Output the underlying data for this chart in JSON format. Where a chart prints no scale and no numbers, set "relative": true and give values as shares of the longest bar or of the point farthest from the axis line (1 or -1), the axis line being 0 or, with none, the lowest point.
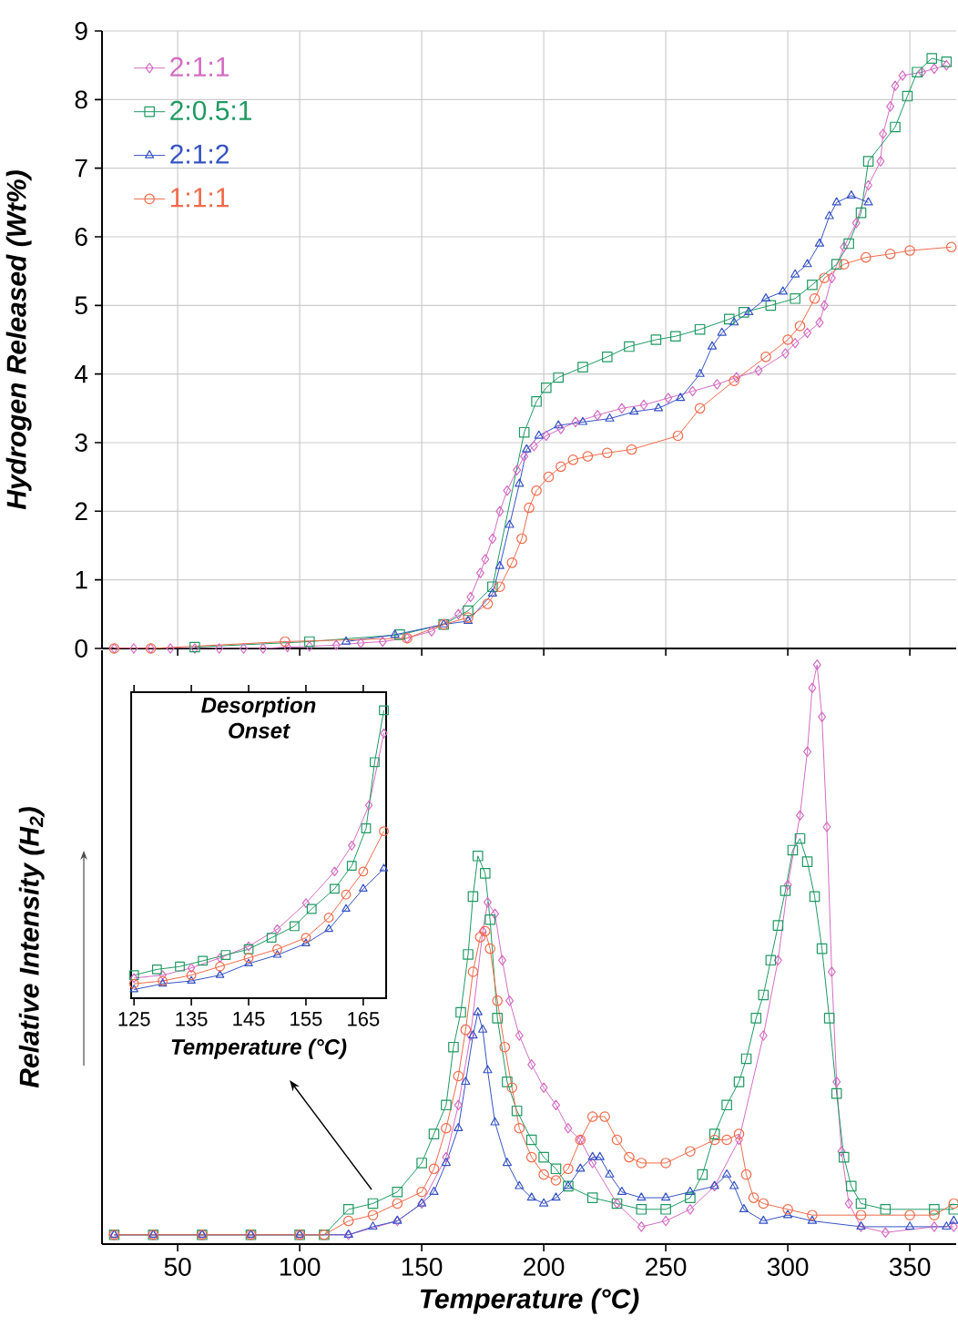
{
  "chart_data": [
    {
      "type": "line",
      "ylabel": "Hydrogen Released (Wt%)",
      "xlim": [
        19,
        369
      ],
      "ylim": [
        0,
        9
      ],
      "xticks": [
        50,
        100,
        150,
        200,
        250,
        300,
        350
      ],
      "yticks": [
        0,
        1,
        2,
        3,
        4,
        5,
        6,
        7,
        8,
        9
      ],
      "tick_labels": "y",
      "grid": true,
      "legend": "top left",
      "series": [
        {
          "name": "2:1:1",
          "color": "#d46cc4",
          "marker": "diamond",
          "x": [
            24,
            32,
            39,
            47,
            57,
            67,
            77,
            85,
            95,
            104,
            115,
            125,
            134,
            144,
            154,
            165,
            170,
            174,
            176,
            179,
            182,
            185,
            189,
            192,
            196,
            201,
            207,
            213,
            222,
            232,
            241,
            251,
            261,
            271,
            279,
            288,
            299,
            303,
            308,
            313,
            315,
            318,
            323,
            328,
            333,
            338,
            339,
            342,
            344,
            347,
            355,
            360,
            365
          ],
          "values": [
            0,
            0,
            0,
            0,
            0,
            0,
            0,
            0,
            0.02,
            0.03,
            0.05,
            0.08,
            0.1,
            0.15,
            0.25,
            0.5,
            0.75,
            1.1,
            1.3,
            1.6,
            2.0,
            2.3,
            2.6,
            2.8,
            2.95,
            3.1,
            3.2,
            3.3,
            3.4,
            3.5,
            3.55,
            3.65,
            3.75,
            3.85,
            3.95,
            4.05,
            4.3,
            4.45,
            4.6,
            4.75,
            5.0,
            5.4,
            5.85,
            6.2,
            6.75,
            7.1,
            7.5,
            7.9,
            8.2,
            8.35,
            8.4,
            8.45,
            8.5
          ]
        },
        {
          "name": "2:0.5:1",
          "color": "#1f9a62",
          "marker": "square",
          "x": [
            57,
            104,
            141,
            159,
            169,
            179,
            192,
            197,
            201,
            206,
            216,
            226,
            235,
            246,
            254,
            264,
            276,
            282,
            293,
            303,
            310,
            320,
            325,
            330,
            333,
            344,
            349,
            353,
            359,
            365
          ],
          "values": [
            0.02,
            0.1,
            0.2,
            0.35,
            0.55,
            0.9,
            3.15,
            3.6,
            3.8,
            3.95,
            4.1,
            4.25,
            4.4,
            4.5,
            4.55,
            4.65,
            4.8,
            4.9,
            5.0,
            5.1,
            5.3,
            5.6,
            5.9,
            6.35,
            7.1,
            7.6,
            8.05,
            8.4,
            8.6,
            8.55
          ]
        },
        {
          "name": "2:1:2",
          "color": "#3552c4",
          "marker": "triangle",
          "x": [
            119,
            139,
            159,
            169,
            179,
            182,
            186,
            190,
            193,
            198,
            206,
            216,
            227,
            237,
            247,
            256,
            264,
            269,
            273,
            278,
            284,
            291,
            298,
            303,
            308,
            313,
            317,
            320,
            326,
            333
          ],
          "values": [
            0.1,
            0.2,
            0.35,
            0.4,
            0.8,
            1.2,
            1.8,
            2.4,
            2.9,
            3.1,
            3.25,
            3.3,
            3.35,
            3.45,
            3.5,
            3.65,
            4.0,
            4.4,
            4.6,
            4.75,
            4.9,
            5.1,
            5.2,
            5.45,
            5.6,
            5.9,
            6.3,
            6.5,
            6.6,
            6.5
          ]
        },
        {
          "name": "1:1:1",
          "color": "#f06a4a",
          "marker": "circle",
          "x": [
            24,
            39,
            94,
            144,
            159,
            169,
            177,
            182,
            187,
            191,
            194,
            197,
            202,
            207,
            212,
            218,
            226,
            236,
            255,
            264,
            278,
            291,
            300,
            305,
            311,
            315,
            323,
            332,
            342,
            350,
            367
          ],
          "values": [
            0,
            0,
            0.1,
            0.15,
            0.35,
            0.45,
            0.65,
            0.9,
            1.25,
            1.6,
            2.05,
            2.3,
            2.5,
            2.65,
            2.75,
            2.8,
            2.85,
            2.9,
            3.1,
            3.5,
            3.9,
            4.25,
            4.5,
            4.7,
            5.1,
            5.4,
            5.6,
            5.7,
            5.75,
            5.8,
            5.85
          ]
        }
      ]
    },
    {
      "type": "line",
      "relative": true,
      "xlabel": "Temperature (°C)",
      "ylabel": "Relative Intensity (H$_{2}$)",
      "xlim": [
        19,
        369
      ],
      "xticks": [
        50,
        100,
        150,
        200,
        250,
        300,
        350
      ],
      "tick_labels": "x",
      "series": [
        {
          "color": "#d46cc4",
          "marker": "diamond",
          "x": [
            24,
            40,
            60,
            80,
            100,
            120,
            140,
            150,
            160,
            165,
            170,
            175,
            177,
            180,
            183,
            186,
            190,
            195,
            200,
            205,
            210,
            215,
            220,
            230,
            240,
            250,
            260,
            270,
            280,
            290,
            296,
            300,
            305,
            308,
            310,
            312,
            314,
            316,
            318,
            320,
            322,
            325,
            330,
            340,
            360,
            368
          ],
          "values": [
            0.016,
            0.016,
            0.016,
            0.016,
            0.016,
            0.016,
            0.04,
            0.07,
            0.15,
            0.24,
            0.36,
            0.54,
            0.59,
            0.57,
            0.49,
            0.42,
            0.36,
            0.31,
            0.27,
            0.24,
            0.2,
            0.18,
            0.14,
            0.07,
            0.03,
            0.04,
            0.06,
            0.1,
            0.18,
            0.36,
            0.49,
            0.62,
            0.74,
            0.85,
            0.96,
            1.0,
            0.91,
            0.72,
            0.47,
            0.28,
            0.16,
            0.07,
            0.03,
            0.02,
            0.03,
            0.03
          ]
        },
        {
          "color": "#1f9a62",
          "marker": "square",
          "x": [
            24,
            40,
            60,
            80,
            100,
            110,
            120,
            130,
            140,
            150,
            155,
            160,
            163,
            166,
            169,
            171,
            173,
            176,
            178,
            181,
            185,
            189,
            195,
            200,
            205,
            210,
            220,
            230,
            240,
            250,
            260,
            265,
            270,
            275,
            280,
            283,
            287,
            290,
            293,
            296,
            299,
            302,
            305,
            308,
            311,
            314,
            317,
            320,
            323,
            326,
            330,
            340,
            360,
            368
          ],
          "values": [
            0.016,
            0.016,
            0.016,
            0.016,
            0.016,
            0.016,
            0.06,
            0.07,
            0.09,
            0.14,
            0.19,
            0.24,
            0.34,
            0.4,
            0.5,
            0.6,
            0.67,
            0.64,
            0.56,
            0.39,
            0.28,
            0.23,
            0.18,
            0.15,
            0.13,
            0.1,
            0.08,
            0.07,
            0.06,
            0.06,
            0.08,
            0.12,
            0.19,
            0.24,
            0.28,
            0.32,
            0.39,
            0.43,
            0.49,
            0.55,
            0.61,
            0.68,
            0.7,
            0.66,
            0.6,
            0.51,
            0.39,
            0.26,
            0.15,
            0.1,
            0.07,
            0.06,
            0.06,
            0.06
          ]
        },
        {
          "color": "#3552c4",
          "marker": "triangle",
          "x": [
            24,
            40,
            60,
            80,
            100,
            120,
            130,
            140,
            150,
            155,
            160,
            165,
            168,
            171,
            173,
            175,
            177,
            180,
            185,
            190,
            195,
            200,
            205,
            210,
            215,
            220,
            223,
            227,
            232,
            240,
            250,
            260,
            270,
            275,
            278,
            282,
            290,
            300,
            310,
            330,
            350,
            365,
            368
          ],
          "values": [
            0.016,
            0.016,
            0.016,
            0.016,
            0.016,
            0.016,
            0.03,
            0.04,
            0.07,
            0.09,
            0.14,
            0.2,
            0.28,
            0.36,
            0.4,
            0.37,
            0.3,
            0.21,
            0.14,
            0.1,
            0.08,
            0.07,
            0.08,
            0.1,
            0.13,
            0.15,
            0.15,
            0.12,
            0.09,
            0.08,
            0.08,
            0.09,
            0.1,
            0.12,
            0.1,
            0.06,
            0.04,
            0.05,
            0.04,
            0.03,
            0.03,
            0.03,
            0.04
          ]
        },
        {
          "color": "#f06a4a",
          "marker": "circle",
          "x": [
            24,
            40,
            60,
            80,
            100,
            110,
            120,
            130,
            140,
            150,
            155,
            160,
            165,
            168,
            171,
            174,
            176,
            178,
            181,
            184,
            187,
            190,
            195,
            200,
            205,
            210,
            215,
            220,
            225,
            230,
            235,
            240,
            250,
            260,
            270,
            275,
            280,
            283,
            286,
            290,
            300,
            310,
            330,
            350,
            360,
            368
          ],
          "values": [
            0.016,
            0.016,
            0.016,
            0.016,
            0.016,
            0.016,
            0.04,
            0.05,
            0.07,
            0.09,
            0.13,
            0.2,
            0.29,
            0.37,
            0.47,
            0.53,
            0.54,
            0.51,
            0.42,
            0.34,
            0.27,
            0.2,
            0.15,
            0.12,
            0.11,
            0.13,
            0.18,
            0.22,
            0.22,
            0.18,
            0.15,
            0.14,
            0.14,
            0.16,
            0.18,
            0.18,
            0.19,
            0.12,
            0.08,
            0.07,
            0.06,
            0.05,
            0.05,
            0.05,
            0.05,
            0.07
          ]
        }
      ]
    },
    {
      "type": "line",
      "relative": true,
      "title": "Desorption Onset",
      "xlabel": "Temperature (°C)",
      "xlim": [
        124.5,
        169
      ],
      "xticks": [
        125,
        135,
        145,
        155,
        165
      ],
      "tick_labels": "x",
      "series": [
        {
          "color": "#d46cc4",
          "marker": "diamond",
          "x": [
            125,
            130,
            135,
            140,
            145,
            150,
            155,
            160,
            163,
            166,
            168.6
          ],
          "values": [
            0.07,
            0.08,
            0.105,
            0.14,
            0.18,
            0.24,
            0.33,
            0.44,
            0.53,
            0.67,
            0.92
          ]
        },
        {
          "color": "#1f9a62",
          "marker": "square",
          "x": [
            125,
            129,
            133,
            137,
            141,
            145,
            149,
            153,
            156,
            160,
            163,
            165.5,
            167,
            168.6
          ],
          "values": [
            0.08,
            0.1,
            0.11,
            0.13,
            0.15,
            0.17,
            0.21,
            0.25,
            0.31,
            0.38,
            0.46,
            0.59,
            0.82,
            1.0
          ]
        },
        {
          "color": "#3552c4",
          "marker": "triangle",
          "x": [
            125,
            130,
            135,
            140,
            145,
            150,
            155,
            159,
            162,
            165,
            168.6
          ],
          "values": [
            0.03,
            0.05,
            0.06,
            0.08,
            0.12,
            0.15,
            0.19,
            0.24,
            0.31,
            0.38,
            0.45
          ]
        },
        {
          "color": "#f06a4a",
          "marker": "circle",
          "x": [
            125,
            130,
            135,
            140,
            145,
            150,
            155,
            159,
            162,
            165,
            168.6
          ],
          "values": [
            0.05,
            0.06,
            0.08,
            0.11,
            0.14,
            0.17,
            0.21,
            0.28,
            0.36,
            0.44,
            0.58
          ]
        }
      ]
    }
  ]
}
